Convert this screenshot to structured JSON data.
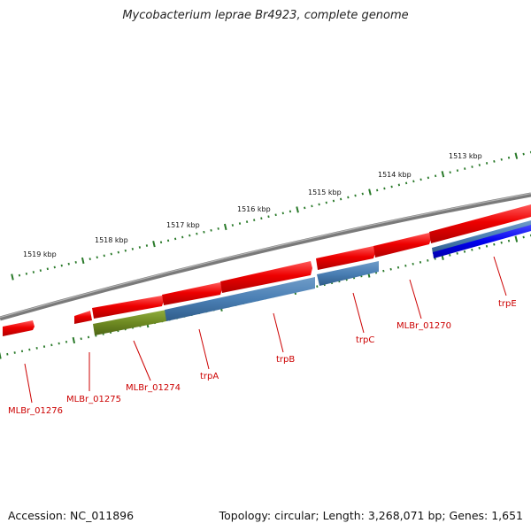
{
  "title": "Mycobacterium leprae Br4923, complete genome",
  "footer": {
    "accession": "Accession: NC_011896",
    "summary": "Topology: circular; Length: 3,268,071 bp; Genes: 1,651"
  },
  "colors": {
    "backbone": "#7a7a7a",
    "cds_red": "#ee0000",
    "steelblue": "#4a7fb4",
    "olive": "#6e8a22",
    "blue": "#0000ee",
    "ticks": "#2a7a2a",
    "label": "#cc0000"
  },
  "ticks": {
    "labels": [
      "1513 kbp",
      "1514 kbp",
      "1515 kbp",
      "1516 kbp",
      "1517 kbp",
      "1518 kbp",
      "1519 kbp"
    ]
  },
  "genes": [
    {
      "label": "MLBr_01276"
    },
    {
      "label": "MLBr_01275"
    },
    {
      "label": "MLBr_01274"
    },
    {
      "label": "trpA"
    },
    {
      "label": "trpB"
    },
    {
      "label": "trpC"
    },
    {
      "label": "MLBr_01270"
    },
    {
      "label": "trpE"
    }
  ]
}
